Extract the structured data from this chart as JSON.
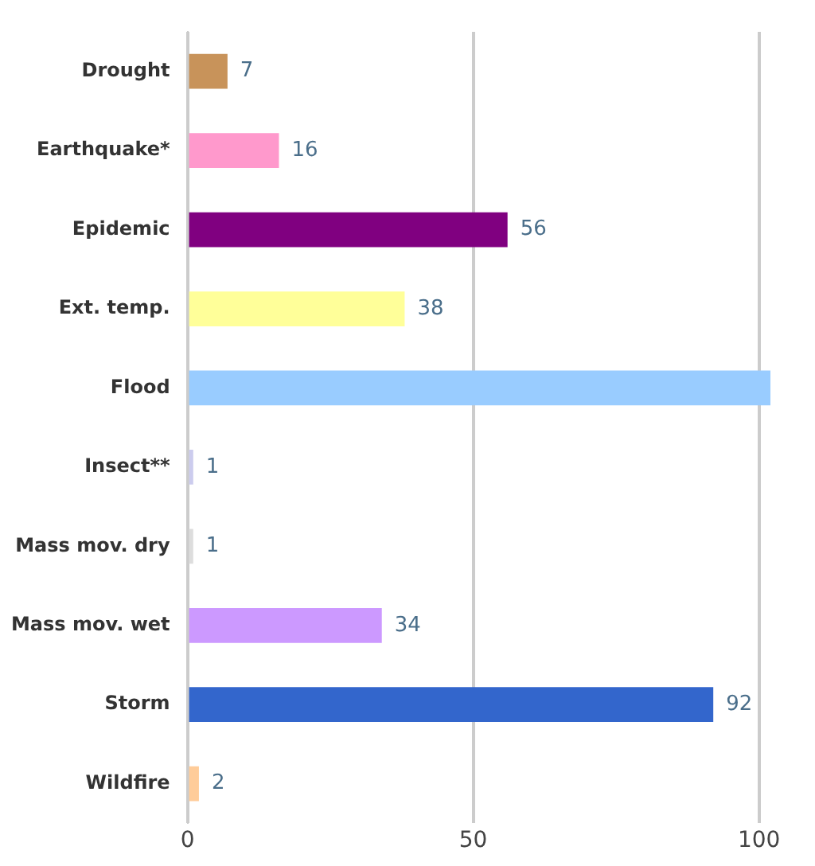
{
  "chart_data": {
    "type": "bar",
    "orientation": "horizontal",
    "categories": [
      "Drought",
      "Earthquake*",
      "Epidemic",
      "Ext. temp.",
      "Flood",
      "Insect**",
      "Mass mov. dry",
      "Mass mov. wet",
      "Storm",
      "Wildfire"
    ],
    "values": [
      7,
      16,
      56,
      38,
      102,
      1,
      1,
      34,
      92,
      2
    ],
    "colors": [
      "#c8935a",
      "#ff99cc",
      "#800080",
      "#ffff99",
      "#99ccff",
      "#ccccee",
      "#dddddd",
      "#cc99ff",
      "#3366cc",
      "#ffcc99"
    ],
    "value_labels": [
      "7",
      "16",
      "56",
      "38",
      null,
      "1",
      "1",
      "34",
      "92",
      "2"
    ],
    "xlim": [
      0,
      102
    ],
    "xticks": [
      0,
      50,
      100
    ],
    "grid": "x"
  }
}
